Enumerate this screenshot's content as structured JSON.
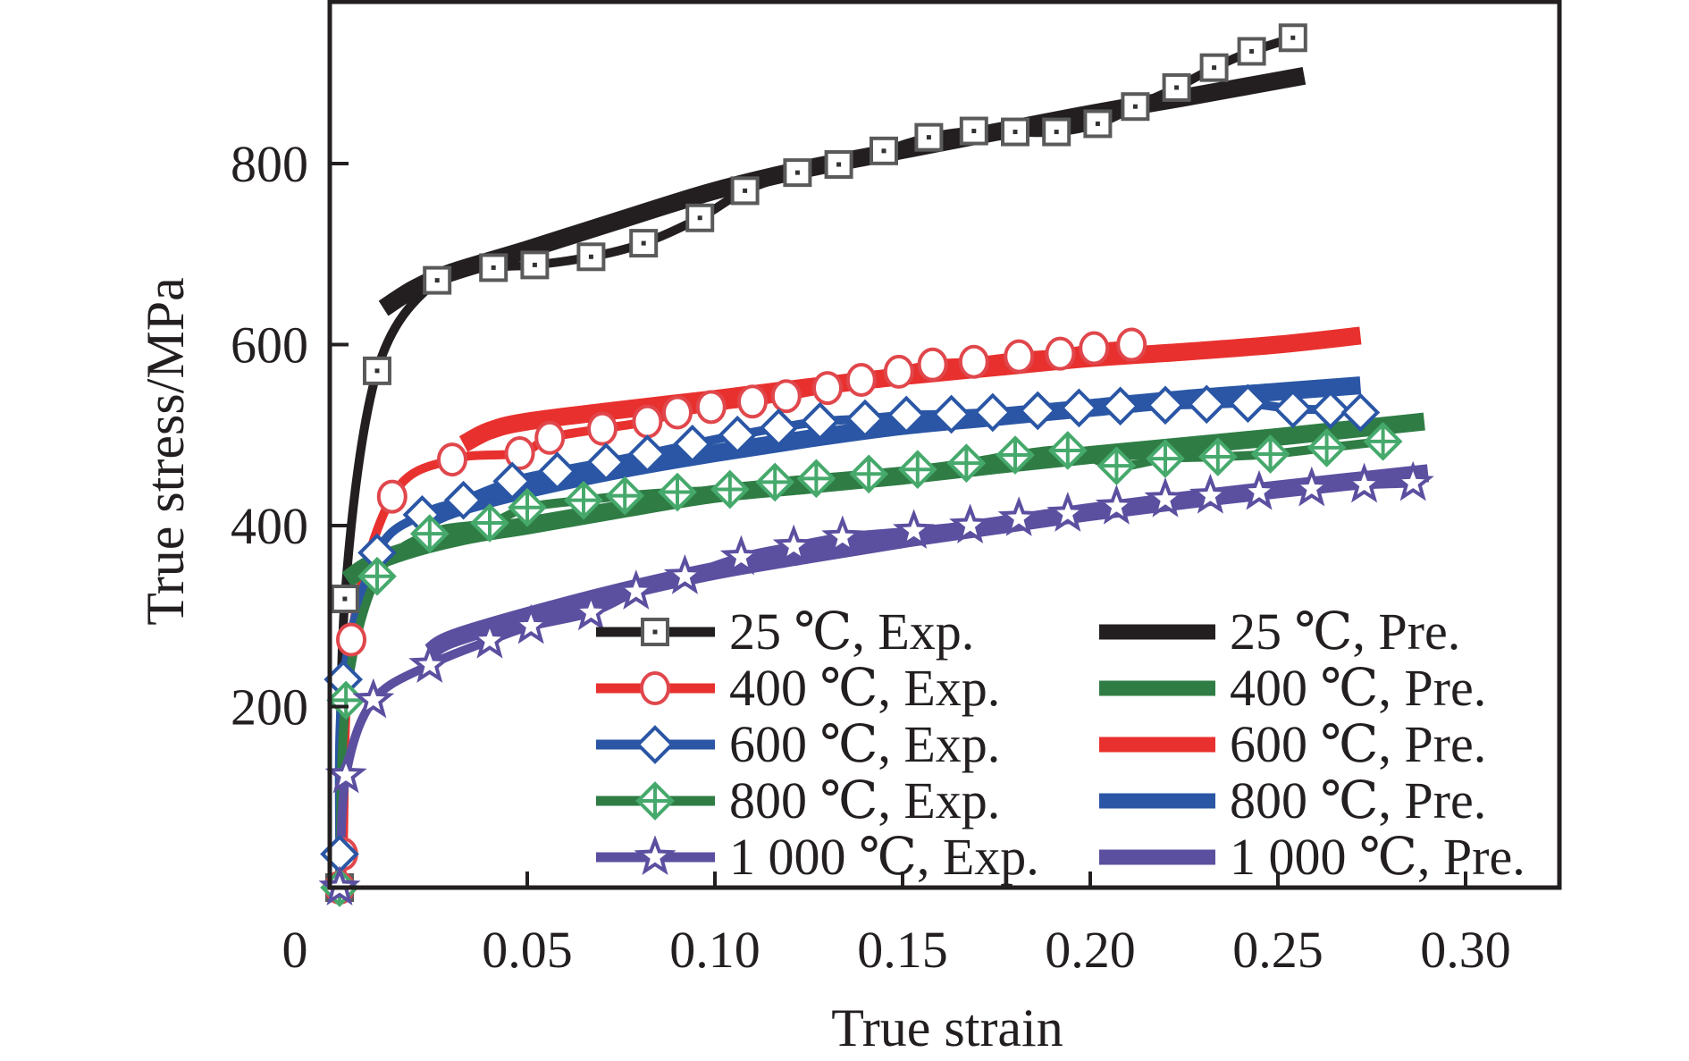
{
  "chart_data": {
    "type": "line",
    "title": "",
    "xlabel": "True strain",
    "ylabel": "True stress/MPa",
    "xlim": [
      -0.0026,
      0.325
    ],
    "ylim": [
      0,
      978
    ],
    "grid": false,
    "legend_position": "bottom-right",
    "x_ticks": [
      {
        "value": 0,
        "label": "0"
      },
      {
        "value": 0.05,
        "label": "0.05"
      },
      {
        "value": 0.1,
        "label": "0.10"
      },
      {
        "value": 0.15,
        "label": "0.15"
      },
      {
        "value": 0.2,
        "label": "0.20"
      },
      {
        "value": 0.25,
        "label": "0.25"
      },
      {
        "value": 0.3,
        "label": "0.30"
      }
    ],
    "y_ticks": [
      {
        "value": 200,
        "label": "200"
      },
      {
        "value": 400,
        "label": "400"
      },
      {
        "value": 600,
        "label": "600"
      },
      {
        "value": 800,
        "label": "800"
      }
    ],
    "series": [
      {
        "name": "25 ℃, Exp.",
        "kind": "exp",
        "marker": "square-dot",
        "line_color": "#231f20",
        "marker_color": "#5a5a5a",
        "x": [
          0.0,
          0.0014,
          0.01,
          0.026,
          0.041,
          0.052,
          0.067,
          0.081,
          0.096,
          0.108,
          0.122,
          0.133,
          0.145,
          0.157,
          0.169,
          0.18,
          0.191,
          0.202,
          0.212,
          0.223,
          0.233,
          0.243,
          0.254
        ],
        "y": [
          0,
          319,
          571,
          671,
          685,
          688,
          697,
          712,
          740,
          770,
          790,
          799,
          814,
          829,
          836,
          835,
          835,
          844,
          863,
          884,
          906,
          924,
          939
        ]
      },
      {
        "name": "400 ℃, Exp.",
        "kind": "exp",
        "marker": "circle",
        "line_color": "#e8312e",
        "marker_color": "#e0474c",
        "x": [
          0.0,
          0.0009,
          0.0031,
          0.014,
          0.03,
          0.048,
          0.056,
          0.07,
          0.082,
          0.09,
          0.099,
          0.11,
          0.119,
          0.13,
          0.139,
          0.149,
          0.158,
          0.169,
          0.181,
          0.192,
          0.201,
          0.211
        ],
        "y": [
          0,
          37,
          274,
          432,
          473,
          480,
          497,
          507,
          515,
          525,
          531,
          537,
          543,
          552,
          561,
          570,
          578,
          581,
          587,
          590,
          596,
          600
        ]
      },
      {
        "name": "600 ℃, Exp.",
        "kind": "exp",
        "marker": "diamond",
        "line_color": "#2a56a5",
        "marker_color": "#2a56a5",
        "x": [
          0.0,
          0.001,
          0.01,
          0.022,
          0.033,
          0.046,
          0.058,
          0.071,
          0.082,
          0.094,
          0.106,
          0.117,
          0.128,
          0.14,
          0.151,
          0.163,
          0.174,
          0.186,
          0.197,
          0.208,
          0.22,
          0.231,
          0.242,
          0.254,
          0.264,
          0.272
        ],
        "y": [
          37,
          230,
          370,
          412,
          428,
          449,
          460,
          470,
          479,
          490,
          500,
          508,
          515,
          518,
          522,
          523,
          525,
          527,
          530,
          532,
          533,
          534,
          535,
          529,
          528,
          525
        ]
      },
      {
        "name": "800 ℃, Exp.",
        "kind": "exp",
        "marker": "diamond-cross",
        "line_color": "#2f7d45",
        "marker_color": "#46a96c",
        "x": [
          0.0,
          0.0017,
          0.01,
          0.024,
          0.04,
          0.05,
          0.065,
          0.076,
          0.09,
          0.104,
          0.116,
          0.127,
          0.141,
          0.154,
          0.167,
          0.18,
          0.194,
          0.207,
          0.22,
          0.234,
          0.248,
          0.263,
          0.278
        ],
        "y": [
          0,
          207,
          344,
          391,
          403,
          420,
          428,
          433,
          437,
          440,
          448,
          452,
          457,
          462,
          469,
          478,
          483,
          466,
          474,
          476,
          479,
          486,
          493
        ]
      },
      {
        "name": "1 000 ℃, Exp.",
        "kind": "exp",
        "marker": "star",
        "line_color": "#5b4fa0",
        "marker_color": "#5b4fa0",
        "x": [
          0.0,
          0.0017,
          0.009,
          0.024,
          0.04,
          0.051,
          0.067,
          0.079,
          0.092,
          0.107,
          0.121,
          0.134,
          0.153,
          0.168,
          0.181,
          0.194,
          0.207,
          0.22,
          0.232,
          0.245,
          0.259,
          0.273,
          0.286
        ],
        "y": [
          0,
          124,
          207,
          246,
          273,
          289,
          304,
          327,
          344,
          365,
          377,
          387,
          394,
          400,
          408,
          413,
          421,
          429,
          433,
          437,
          441,
          445,
          447
        ]
      },
      {
        "name": "25 ℃, Pre.",
        "kind": "pre",
        "line_color": "#231f20",
        "x": [
          0.0117,
          0.02,
          0.03,
          0.05,
          0.075,
          0.1,
          0.125,
          0.15,
          0.175,
          0.2,
          0.225,
          0.257
        ],
        "y": [
          640,
          662,
          680,
          705,
          738,
          770,
          795,
          815,
          835,
          855,
          873,
          897
        ]
      },
      {
        "name": "400 ℃, Pre.",
        "kind": "pre",
        "line_color": "#2f7d45",
        "x": [
          0.002,
          0.008,
          0.02,
          0.035,
          0.05,
          0.075,
          0.1,
          0.125,
          0.15,
          0.175,
          0.2,
          0.225,
          0.25,
          0.289
        ],
        "y": [
          340,
          357,
          375,
          390,
          400,
          418,
          435,
          445,
          455,
          467,
          478,
          488,
          498,
          515
        ]
      },
      {
        "name": "600 ℃, Pre.",
        "kind": "pre",
        "line_color": "#e8312e",
        "x": [
          0.033,
          0.04,
          0.05,
          0.075,
          0.1,
          0.125,
          0.15,
          0.175,
          0.2,
          0.225,
          0.25,
          0.272
        ],
        "y": [
          490,
          505,
          515,
          528,
          540,
          553,
          565,
          575,
          585,
          592,
          600,
          610
        ]
      },
      {
        "name": "800 ℃, Pre.",
        "kind": "pre",
        "line_color": "#2a56a5",
        "x": [
          0.021,
          0.03,
          0.05,
          0.075,
          0.1,
          0.125,
          0.15,
          0.175,
          0.2,
          0.225,
          0.25,
          0.272
        ],
        "y": [
          400,
          418,
          440,
          462,
          480,
          496,
          510,
          520,
          530,
          540,
          548,
          555
        ]
      },
      {
        "name": "1 000 ℃, Pre.",
        "kind": "pre",
        "line_color": "#5b4fa0",
        "x": [
          0.024,
          0.03,
          0.05,
          0.075,
          0.1,
          0.125,
          0.15,
          0.175,
          0.2,
          0.225,
          0.25,
          0.29
        ],
        "y": [
          260,
          275,
          300,
          327,
          350,
          368,
          385,
          400,
          415,
          428,
          440,
          458
        ]
      }
    ],
    "legend": {
      "exp_column": [
        "25 ℃, Exp.",
        "400 ℃, Exp.",
        "600 ℃, Exp.",
        "800 ℃, Exp.",
        "1 000 ℃, Exp."
      ],
      "pre_column": [
        "25 ℃, Pre.",
        "400 ℃, Pre.",
        "600 ℃, Pre.",
        "800 ℃, Pre.",
        "1 000 ℃, Pre."
      ]
    }
  }
}
